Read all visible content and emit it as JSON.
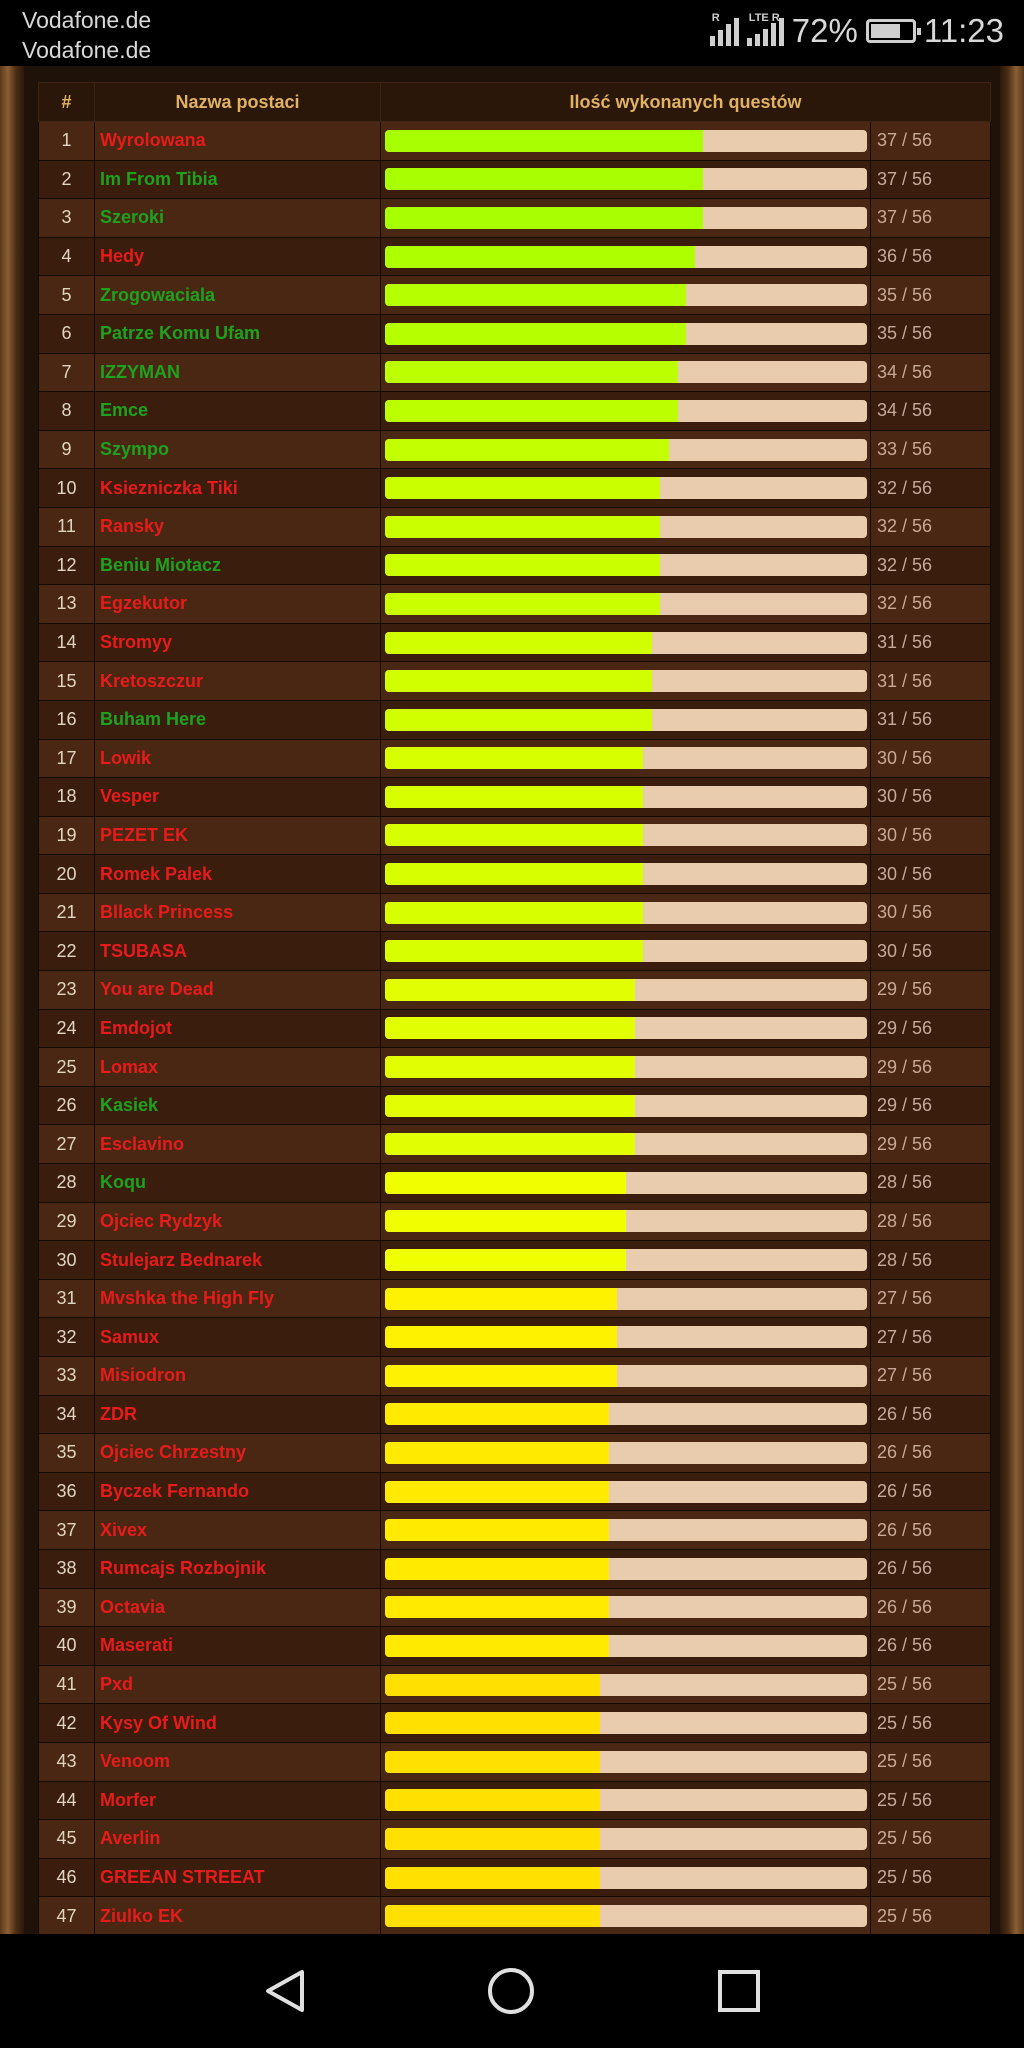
{
  "status_bar": {
    "carrier1": "Vodafone.de",
    "carrier2": "Vodafone.de",
    "signal1_label": "R",
    "signal2_label": "LTE R",
    "battery_percent": "72%",
    "battery_level": 0.72,
    "time": "11:23"
  },
  "table": {
    "headers": [
      "#",
      "Nazwa postaci",
      "Ilość wykonanych questów"
    ],
    "total_quests": 56,
    "rows": [
      {
        "rank": "1",
        "name": "Wyrolowana",
        "status": "red",
        "done": 37,
        "count": "37 / 56",
        "bar_color": "#a8ff00"
      },
      {
        "rank": "2",
        "name": "Im From Tibia",
        "status": "green",
        "done": 37,
        "count": "37 / 56",
        "bar_color": "#a8ff00"
      },
      {
        "rank": "3",
        "name": "Szeroki",
        "status": "green",
        "done": 37,
        "count": "37 / 56",
        "bar_color": "#a8ff00"
      },
      {
        "rank": "4",
        "name": "Hedy",
        "status": "red",
        "done": 36,
        "count": "36 / 56",
        "bar_color": "#aeff00"
      },
      {
        "rank": "5",
        "name": "Zrogowaciala",
        "status": "green",
        "done": 35,
        "count": "35 / 56",
        "bar_color": "#b5ff00"
      },
      {
        "rank": "6",
        "name": "Patrze Komu Ufam",
        "status": "green",
        "done": 35,
        "count": "35 / 56",
        "bar_color": "#b5ff00"
      },
      {
        "rank": "7",
        "name": "IZZYMAN",
        "status": "green",
        "done": 34,
        "count": "34 / 56",
        "bar_color": "#bcff00"
      },
      {
        "rank": "8",
        "name": "Emce",
        "status": "green",
        "done": 34,
        "count": "34 / 56",
        "bar_color": "#bcff00"
      },
      {
        "rank": "9",
        "name": "Szympo",
        "status": "green",
        "done": 33,
        "count": "33 / 56",
        "bar_color": "#c3ff00"
      },
      {
        "rank": "10",
        "name": "Ksiezniczka Tiki",
        "status": "red",
        "done": 32,
        "count": "32 / 56",
        "bar_color": "#caff00"
      },
      {
        "rank": "11",
        "name": "Ransky",
        "status": "red",
        "done": 32,
        "count": "32 / 56",
        "bar_color": "#caff00"
      },
      {
        "rank": "12",
        "name": "Beniu Miotacz",
        "status": "green",
        "done": 32,
        "count": "32 / 56",
        "bar_color": "#caff00"
      },
      {
        "rank": "13",
        "name": "Egzekutor",
        "status": "red",
        "done": 32,
        "count": "32 / 56",
        "bar_color": "#caff00"
      },
      {
        "rank": "14",
        "name": "Stromyy",
        "status": "red",
        "done": 31,
        "count": "31 / 56",
        "bar_color": "#d1ff00"
      },
      {
        "rank": "15",
        "name": "Kretoszczur",
        "status": "red",
        "done": 31,
        "count": "31 / 56",
        "bar_color": "#d1ff00"
      },
      {
        "rank": "16",
        "name": "Buham Here",
        "status": "green",
        "done": 31,
        "count": "31 / 56",
        "bar_color": "#d1ff00"
      },
      {
        "rank": "17",
        "name": "Lowik",
        "status": "red",
        "done": 30,
        "count": "30 / 56",
        "bar_color": "#d8ff00"
      },
      {
        "rank": "18",
        "name": "Vesper",
        "status": "red",
        "done": 30,
        "count": "30 / 56",
        "bar_color": "#d8ff00"
      },
      {
        "rank": "19",
        "name": "PEZET EK",
        "status": "red",
        "done": 30,
        "count": "30 / 56",
        "bar_color": "#d8ff00"
      },
      {
        "rank": "20",
        "name": "Romek Palek",
        "status": "red",
        "done": 30,
        "count": "30 / 56",
        "bar_color": "#d8ff00"
      },
      {
        "rank": "21",
        "name": "Bllack Princess",
        "status": "red",
        "done": 30,
        "count": "30 / 56",
        "bar_color": "#d8ff00"
      },
      {
        "rank": "22",
        "name": "TSUBASA",
        "status": "red",
        "done": 30,
        "count": "30 / 56",
        "bar_color": "#d8ff00"
      },
      {
        "rank": "23",
        "name": "You are Dead",
        "status": "red",
        "done": 29,
        "count": "29 / 56",
        "bar_color": "#e2ff00"
      },
      {
        "rank": "24",
        "name": "Emdojot",
        "status": "red",
        "done": 29,
        "count": "29 / 56",
        "bar_color": "#e2ff00"
      },
      {
        "rank": "25",
        "name": "Lomax",
        "status": "red",
        "done": 29,
        "count": "29 / 56",
        "bar_color": "#e2ff00"
      },
      {
        "rank": "26",
        "name": "Kasiek",
        "status": "green",
        "done": 29,
        "count": "29 / 56",
        "bar_color": "#e2ff00"
      },
      {
        "rank": "27",
        "name": "Esclavino",
        "status": "red",
        "done": 29,
        "count": "29 / 56",
        "bar_color": "#e2ff00"
      },
      {
        "rank": "28",
        "name": "Koqu",
        "status": "green",
        "done": 28,
        "count": "28 / 56",
        "bar_color": "#f0ff00"
      },
      {
        "rank": "29",
        "name": "Ojciec Rydzyk",
        "status": "red",
        "done": 28,
        "count": "28 / 56",
        "bar_color": "#f0ff00"
      },
      {
        "rank": "30",
        "name": "Stulejarz Bednarek",
        "status": "red",
        "done": 28,
        "count": "28 / 56",
        "bar_color": "#f0ff00"
      },
      {
        "rank": "31",
        "name": "Mvshka the High Fly",
        "status": "red",
        "done": 27,
        "count": "27 / 56",
        "bar_color": "#fff200"
      },
      {
        "rank": "32",
        "name": "Samux",
        "status": "red",
        "done": 27,
        "count": "27 / 56",
        "bar_color": "#fff200"
      },
      {
        "rank": "33",
        "name": "Misiodron",
        "status": "red",
        "done": 27,
        "count": "27 / 56",
        "bar_color": "#fff200"
      },
      {
        "rank": "34",
        "name": "ZDR",
        "status": "red",
        "done": 26,
        "count": "26 / 56",
        "bar_color": "#ffea00"
      },
      {
        "rank": "35",
        "name": "Ojciec Chrzestny",
        "status": "red",
        "done": 26,
        "count": "26 / 56",
        "bar_color": "#ffea00"
      },
      {
        "rank": "36",
        "name": "Byczek Fernando",
        "status": "red",
        "done": 26,
        "count": "26 / 56",
        "bar_color": "#ffea00"
      },
      {
        "rank": "37",
        "name": "Xivex",
        "status": "red",
        "done": 26,
        "count": "26 / 56",
        "bar_color": "#ffea00"
      },
      {
        "rank": "38",
        "name": "Rumcajs Rozbojnik",
        "status": "red",
        "done": 26,
        "count": "26 / 56",
        "bar_color": "#ffea00"
      },
      {
        "rank": "39",
        "name": "Octavia",
        "status": "red",
        "done": 26,
        "count": "26 / 56",
        "bar_color": "#ffea00"
      },
      {
        "rank": "40",
        "name": "Maserati",
        "status": "red",
        "done": 26,
        "count": "26 / 56",
        "bar_color": "#ffea00"
      },
      {
        "rank": "41",
        "name": "Pxd",
        "status": "red",
        "done": 25,
        "count": "25 / 56",
        "bar_color": "#ffe000"
      },
      {
        "rank": "42",
        "name": "Kysy Of Wind",
        "status": "red",
        "done": 25,
        "count": "25 / 56",
        "bar_color": "#ffe000"
      },
      {
        "rank": "43",
        "name": "Venoom",
        "status": "red",
        "done": 25,
        "count": "25 / 56",
        "bar_color": "#ffe000"
      },
      {
        "rank": "44",
        "name": "Morfer",
        "status": "red",
        "done": 25,
        "count": "25 / 56",
        "bar_color": "#ffe000"
      },
      {
        "rank": "45",
        "name": "Averlin",
        "status": "red",
        "done": 25,
        "count": "25 / 56",
        "bar_color": "#ffe000"
      },
      {
        "rank": "46",
        "name": "GREEAN STREEAT",
        "status": "red",
        "done": 25,
        "count": "25 / 56",
        "bar_color": "#ffe000"
      },
      {
        "rank": "47",
        "name": "Ziulko EK",
        "status": "red",
        "done": 25,
        "count": "25 / 56",
        "bar_color": "#ffe000"
      }
    ]
  },
  "nav_bar": {
    "back_icon": "back-triangle-icon",
    "home_icon": "home-circle-icon",
    "recent_icon": "recent-apps-square-icon"
  }
}
